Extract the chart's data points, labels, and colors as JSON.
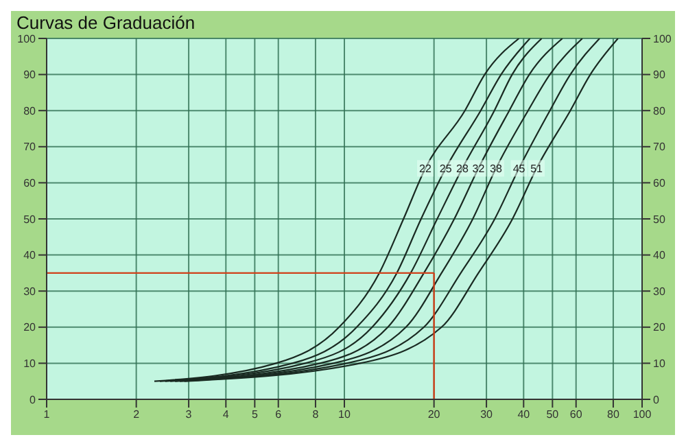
{
  "chart_data": {
    "type": "line",
    "title": "Curvas de Graduación",
    "log": "x",
    "xlim": [
      1,
      100
    ],
    "xticks": [
      1,
      2,
      3,
      4,
      5,
      6,
      8,
      10,
      20,
      30,
      40,
      50,
      60,
      80,
      100
    ],
    "ylim": [
      0,
      100
    ],
    "yticks": [
      0,
      10,
      20,
      30,
      40,
      50,
      60,
      70,
      80,
      90,
      100
    ],
    "y2lim": [
      0,
      100
    ],
    "y2ticks": [
      0,
      10,
      20,
      30,
      40,
      50,
      60,
      70,
      80,
      90,
      100
    ],
    "grid": true,
    "legend": false,
    "marker": "none",
    "line_style": "solid",
    "series": [
      {
        "color": "#1a2a22",
        "x": [
          2.3,
          5.9,
          9.6,
          13.1,
          15.8,
          18.7,
          25.4,
          29.6,
          38.6
        ],
        "values": [
          5,
          10,
          20,
          35,
          50,
          64,
          80,
          90,
          100
        ]
      },
      {
        "color": "#1a2a22",
        "x": [
          2.4,
          6.7,
          11.0,
          15.0,
          18.1,
          21.9,
          28.7,
          33.6,
          42
        ],
        "values": [
          5,
          10,
          20,
          35,
          50,
          64,
          80,
          90,
          100
        ]
      },
      {
        "color": "#1a2a22",
        "x": [
          2.5,
          7.4,
          12.4,
          16.7,
          20.5,
          24.9,
          31.9,
          36.6,
          46
        ],
        "values": [
          5,
          10,
          20,
          35,
          50,
          64,
          80,
          90,
          100
        ]
      },
      {
        "color": "#1a2a22",
        "x": [
          2.6,
          8.3,
          14.0,
          18.5,
          23.4,
          28.2,
          35.8,
          41.8,
          54
        ],
        "values": [
          5,
          10,
          20,
          35,
          50,
          64,
          80,
          90,
          100
        ]
      },
      {
        "color": "#1a2a22",
        "x": [
          2.7,
          9.2,
          16.1,
          21.2,
          27.0,
          32.3,
          41.4,
          49,
          63
        ],
        "values": [
          5,
          10,
          20,
          35,
          50,
          64,
          80,
          90,
          100
        ]
      },
      {
        "color": "#1a2a22",
        "x": [
          2.8,
          10.2,
          18.5,
          24.6,
          32.0,
          38.6,
          49,
          57.4,
          72
        ],
        "values": [
          5,
          10,
          20,
          35,
          50,
          64,
          80,
          90,
          100
        ]
      },
      {
        "color": "#1a2a22",
        "x": [
          2.9,
          11.3,
          21.2,
          28.2,
          36.7,
          44.2,
          57.4,
          67,
          83
        ],
        "values": [
          5,
          10,
          20,
          35,
          50,
          64,
          80,
          90,
          100
        ]
      }
    ],
    "annotations": [
      {
        "text": "22",
        "x": 18.7,
        "y": 64
      },
      {
        "text": "25",
        "x": 21.9,
        "y": 64
      },
      {
        "text": "28",
        "x": 24.9,
        "y": 64
      },
      {
        "text": "32",
        "x": 28.2,
        "y": 64
      },
      {
        "text": "38",
        "x": 32.3,
        "y": 64
      },
      {
        "text": "45",
        "x": 38.6,
        "y": 64
      },
      {
        "text": "51",
        "x": 44.2,
        "y": 64
      }
    ],
    "ref_lines": [
      {
        "axis": "x",
        "value": 20,
        "color": "#d0401a"
      },
      {
        "axis": "y",
        "value": 35,
        "color": "#d0401a"
      }
    ]
  }
}
